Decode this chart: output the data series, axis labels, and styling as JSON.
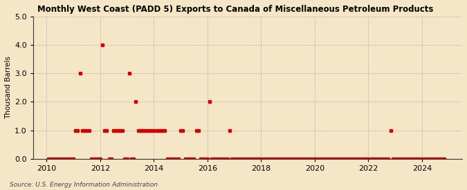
{
  "title": "Monthly West Coast (PADD 5) Exports to Canada of Miscellaneous Petroleum Products",
  "ylabel": "Thousand Barrels",
  "source_text": "Source: U.S. Energy Information Administration",
  "background_color": "#f5e6c8",
  "plot_background_color": "#f5e6c8",
  "marker_color": "#cc0000",
  "grid_color": "#999999",
  "ylim": [
    0.0,
    5.0
  ],
  "xlim_start": 2009.5,
  "xlim_end": 2025.5,
  "yticks": [
    0.0,
    1.0,
    2.0,
    3.0,
    4.0,
    5.0
  ],
  "xticks": [
    2010,
    2012,
    2014,
    2016,
    2018,
    2020,
    2022,
    2024
  ],
  "data": [
    [
      2010.0833,
      0
    ],
    [
      2010.1667,
      0
    ],
    [
      2010.25,
      0
    ],
    [
      2010.3333,
      0
    ],
    [
      2010.4167,
      0
    ],
    [
      2010.5,
      0
    ],
    [
      2010.5833,
      0
    ],
    [
      2010.6667,
      0
    ],
    [
      2010.75,
      0
    ],
    [
      2010.8333,
      0
    ],
    [
      2010.9167,
      0
    ],
    [
      2011.0,
      0
    ],
    [
      2011.0833,
      1
    ],
    [
      2011.1667,
      1
    ],
    [
      2011.25,
      3
    ],
    [
      2011.3333,
      1
    ],
    [
      2011.4167,
      1
    ],
    [
      2011.5,
      1
    ],
    [
      2011.5833,
      1
    ],
    [
      2011.6667,
      0
    ],
    [
      2011.75,
      0
    ],
    [
      2011.8333,
      0
    ],
    [
      2011.9167,
      0
    ],
    [
      2012.0,
      0
    ],
    [
      2012.0833,
      4
    ],
    [
      2012.1667,
      1
    ],
    [
      2012.25,
      1
    ],
    [
      2012.3333,
      0
    ],
    [
      2012.4167,
      0
    ],
    [
      2012.5,
      1
    ],
    [
      2012.5833,
      1
    ],
    [
      2012.6667,
      1
    ],
    [
      2012.75,
      1
    ],
    [
      2012.8333,
      1
    ],
    [
      2012.9167,
      0
    ],
    [
      2013.0,
      0
    ],
    [
      2013.0833,
      3
    ],
    [
      2013.1667,
      0
    ],
    [
      2013.25,
      0
    ],
    [
      2013.3333,
      2
    ],
    [
      2013.4167,
      1
    ],
    [
      2013.5,
      1
    ],
    [
      2013.5833,
      1
    ],
    [
      2013.6667,
      1
    ],
    [
      2013.75,
      1
    ],
    [
      2013.8333,
      1
    ],
    [
      2013.9167,
      1
    ],
    [
      2014.0,
      1
    ],
    [
      2014.0833,
      1
    ],
    [
      2014.1667,
      1
    ],
    [
      2014.25,
      1
    ],
    [
      2014.3333,
      1
    ],
    [
      2014.4167,
      1
    ],
    [
      2014.5,
      0
    ],
    [
      2014.5833,
      0
    ],
    [
      2014.6667,
      0
    ],
    [
      2014.75,
      0
    ],
    [
      2014.8333,
      0
    ],
    [
      2014.9167,
      0
    ],
    [
      2015.0,
      1
    ],
    [
      2015.0833,
      1
    ],
    [
      2015.1667,
      0
    ],
    [
      2015.25,
      0
    ],
    [
      2015.3333,
      0
    ],
    [
      2015.4167,
      0
    ],
    [
      2015.5,
      0
    ],
    [
      2015.5833,
      1
    ],
    [
      2015.6667,
      1
    ],
    [
      2015.75,
      0
    ],
    [
      2015.8333,
      0
    ],
    [
      2015.9167,
      0
    ],
    [
      2016.0,
      0
    ],
    [
      2016.0833,
      2
    ],
    [
      2016.1667,
      0
    ],
    [
      2016.25,
      0
    ],
    [
      2016.3333,
      0
    ],
    [
      2016.4167,
      0
    ],
    [
      2016.5,
      0
    ],
    [
      2016.5833,
      0
    ],
    [
      2016.6667,
      0
    ],
    [
      2016.75,
      0
    ],
    [
      2016.8333,
      1
    ],
    [
      2016.9167,
      0
    ],
    [
      2017.0,
      0
    ],
    [
      2017.0833,
      0
    ],
    [
      2017.1667,
      0
    ],
    [
      2017.25,
      0
    ],
    [
      2017.3333,
      0
    ],
    [
      2017.4167,
      0
    ],
    [
      2017.5,
      0
    ],
    [
      2017.5833,
      0
    ],
    [
      2017.6667,
      0
    ],
    [
      2017.75,
      0
    ],
    [
      2017.8333,
      0
    ],
    [
      2017.9167,
      0
    ],
    [
      2018.0,
      0
    ],
    [
      2018.0833,
      0
    ],
    [
      2018.1667,
      0
    ],
    [
      2018.25,
      0
    ],
    [
      2018.3333,
      0
    ],
    [
      2018.4167,
      0
    ],
    [
      2018.5,
      0
    ],
    [
      2018.5833,
      0
    ],
    [
      2018.6667,
      0
    ],
    [
      2018.75,
      0
    ],
    [
      2018.8333,
      0
    ],
    [
      2018.9167,
      0
    ],
    [
      2019.0,
      0
    ],
    [
      2019.0833,
      0
    ],
    [
      2019.1667,
      0
    ],
    [
      2019.25,
      0
    ],
    [
      2019.3333,
      0
    ],
    [
      2019.4167,
      0
    ],
    [
      2019.5,
      0
    ],
    [
      2019.5833,
      0
    ],
    [
      2019.6667,
      0
    ],
    [
      2019.75,
      0
    ],
    [
      2019.8333,
      0
    ],
    [
      2019.9167,
      0
    ],
    [
      2020.0,
      0
    ],
    [
      2020.0833,
      0
    ],
    [
      2020.1667,
      0
    ],
    [
      2020.25,
      0
    ],
    [
      2020.3333,
      0
    ],
    [
      2020.4167,
      0
    ],
    [
      2020.5,
      0
    ],
    [
      2020.5833,
      0
    ],
    [
      2020.6667,
      0
    ],
    [
      2020.75,
      0
    ],
    [
      2020.8333,
      0
    ],
    [
      2020.9167,
      0
    ],
    [
      2021.0,
      0
    ],
    [
      2021.0833,
      0
    ],
    [
      2021.1667,
      0
    ],
    [
      2021.25,
      0
    ],
    [
      2021.3333,
      0
    ],
    [
      2021.4167,
      0
    ],
    [
      2021.5,
      0
    ],
    [
      2021.5833,
      0
    ],
    [
      2021.6667,
      0
    ],
    [
      2021.75,
      0
    ],
    [
      2021.8333,
      0
    ],
    [
      2021.9167,
      0
    ],
    [
      2022.0,
      0
    ],
    [
      2022.0833,
      0
    ],
    [
      2022.1667,
      0
    ],
    [
      2022.25,
      0
    ],
    [
      2022.3333,
      0
    ],
    [
      2022.4167,
      0
    ],
    [
      2022.5,
      0
    ],
    [
      2022.5833,
      0
    ],
    [
      2022.6667,
      0
    ],
    [
      2022.75,
      0
    ],
    [
      2022.8333,
      1
    ],
    [
      2022.9167,
      0
    ],
    [
      2023.0,
      0
    ],
    [
      2023.0833,
      0
    ],
    [
      2023.1667,
      0
    ],
    [
      2023.25,
      0
    ],
    [
      2023.3333,
      0
    ],
    [
      2023.4167,
      0
    ],
    [
      2023.5,
      0
    ],
    [
      2023.5833,
      0
    ],
    [
      2023.6667,
      0
    ],
    [
      2023.75,
      0
    ],
    [
      2023.8333,
      0
    ],
    [
      2023.9167,
      0
    ],
    [
      2024.0,
      0
    ],
    [
      2024.0833,
      0
    ],
    [
      2024.1667,
      0
    ],
    [
      2024.25,
      0
    ],
    [
      2024.3333,
      0
    ],
    [
      2024.4167,
      0
    ],
    [
      2024.5,
      0
    ],
    [
      2024.5833,
      0
    ],
    [
      2024.6667,
      0
    ],
    [
      2024.75,
      0
    ],
    [
      2024.8333,
      0
    ]
  ]
}
